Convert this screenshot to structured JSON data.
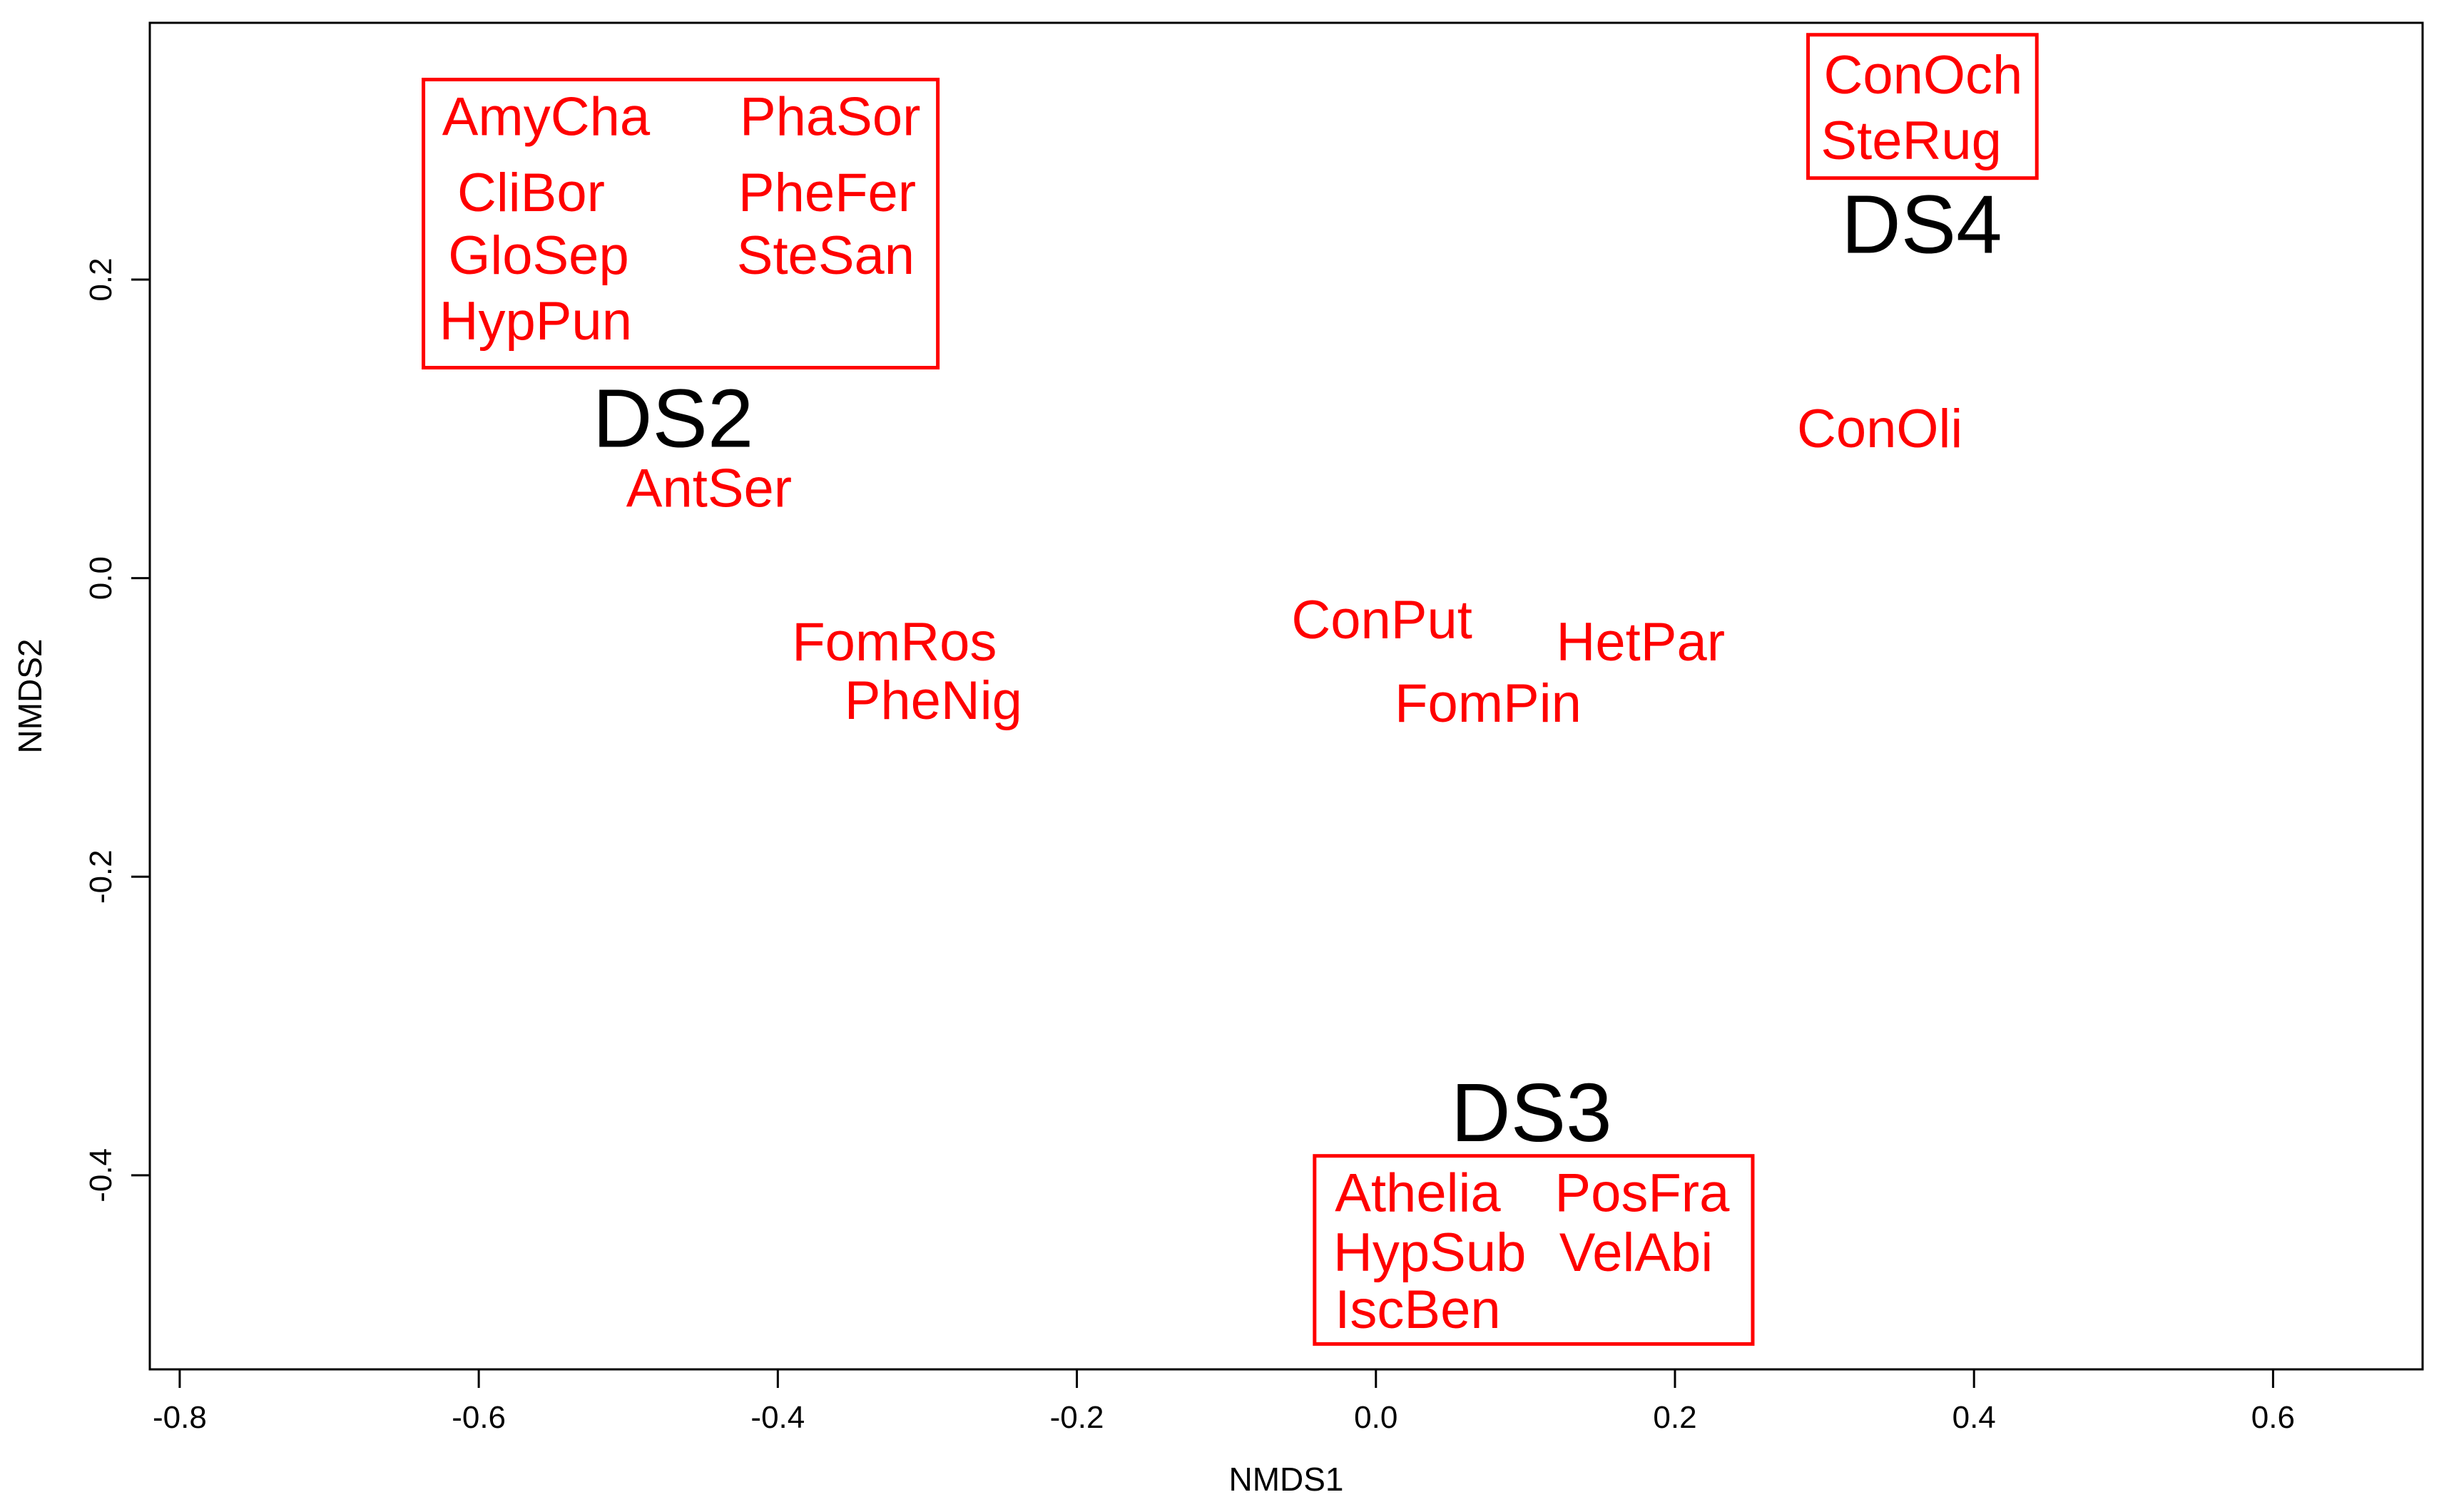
{
  "chart_data": {
    "type": "scatter",
    "subtype": "NMDS ordination (text labels)",
    "title": "",
    "xlabel": "NMDS1",
    "ylabel": "NMDS2",
    "xlim": [
      -0.82,
      0.7
    ],
    "ylim": [
      -0.53,
      0.372
    ],
    "xticks": [
      -0.8,
      -0.6,
      -0.4,
      -0.2,
      0.0,
      0.2,
      0.4,
      0.6
    ],
    "xtick_labels": [
      "-0.8",
      "-0.6",
      "-0.4",
      "-0.2",
      "0.0",
      "0.2",
      "0.4",
      "0.6"
    ],
    "yticks": [
      -0.4,
      -0.2,
      0.0,
      0.2
    ],
    "ytick_labels": [
      "-0.4",
      "-0.2",
      "0.0",
      "0.2"
    ],
    "grid": false,
    "colors": {
      "species": "#ff0000",
      "site": "#000000",
      "axis": "#000000"
    },
    "sites": [
      {
        "label": "DS2",
        "x": -0.47,
        "y": 0.107
      },
      {
        "label": "DS4",
        "x": 0.365,
        "y": 0.237
      },
      {
        "label": "DS3",
        "x": 0.104,
        "y": -0.358
      }
    ],
    "species": [
      {
        "label": "AmyCha",
        "x": -0.555,
        "y": 0.309
      },
      {
        "label": "CliBor",
        "x": -0.565,
        "y": 0.258
      },
      {
        "label": "GloSep",
        "x": -0.56,
        "y": 0.216
      },
      {
        "label": "HypPun",
        "x": -0.562,
        "y": 0.172
      },
      {
        "label": "PhaSor",
        "x": -0.365,
        "y": 0.309
      },
      {
        "label": "PheFer",
        "x": -0.367,
        "y": 0.258
      },
      {
        "label": "SteSan",
        "x": -0.368,
        "y": 0.216
      },
      {
        "label": "ConOch",
        "x": 0.366,
        "y": 0.337
      },
      {
        "label": "SteRug",
        "x": 0.358,
        "y": 0.293
      },
      {
        "label": "ConOli",
        "x": 0.337,
        "y": 0.1
      },
      {
        "label": "AntSer",
        "x": -0.446,
        "y": 0.06
      },
      {
        "label": "FomRos",
        "x": -0.322,
        "y": -0.043
      },
      {
        "label": "PheNig",
        "x": -0.296,
        "y": -0.082
      },
      {
        "label": "ConPut",
        "x": 0.004,
        "y": -0.028
      },
      {
        "label": "HetPar",
        "x": 0.177,
        "y": -0.043
      },
      {
        "label": "FomPin",
        "x": 0.075,
        "y": -0.084
      },
      {
        "label": "Athelia",
        "x": 0.028,
        "y": -0.412
      },
      {
        "label": "HypSub",
        "x": 0.036,
        "y": -0.452
      },
      {
        "label": "IscBen",
        "x": 0.028,
        "y": -0.49
      },
      {
        "label": "PosFra",
        "x": 0.178,
        "y": -0.412
      },
      {
        "label": "VelAbi",
        "x": 0.174,
        "y": -0.452
      }
    ],
    "groups": [
      {
        "site": "DS2",
        "members": [
          "AmyCha",
          "CliBor",
          "GloSep",
          "HypPun",
          "PhaSor",
          "PheFer",
          "SteSan"
        ],
        "box": {
          "x": [
            -0.637,
            -0.293
          ],
          "y": [
            0.141,
            0.334
          ]
        }
      },
      {
        "site": "DS4",
        "members": [
          "ConOch",
          "SteRug"
        ],
        "box": {
          "x": [
            0.289,
            0.442
          ],
          "y": [
            0.268,
            0.364
          ]
        }
      },
      {
        "site": "DS3",
        "members": [
          "Athelia",
          "HypSub",
          "IscBen",
          "PosFra",
          "VelAbi"
        ],
        "box": {
          "x": [
            -0.041,
            0.252
          ],
          "y": [
            -0.513,
            -0.387
          ]
        }
      }
    ]
  }
}
